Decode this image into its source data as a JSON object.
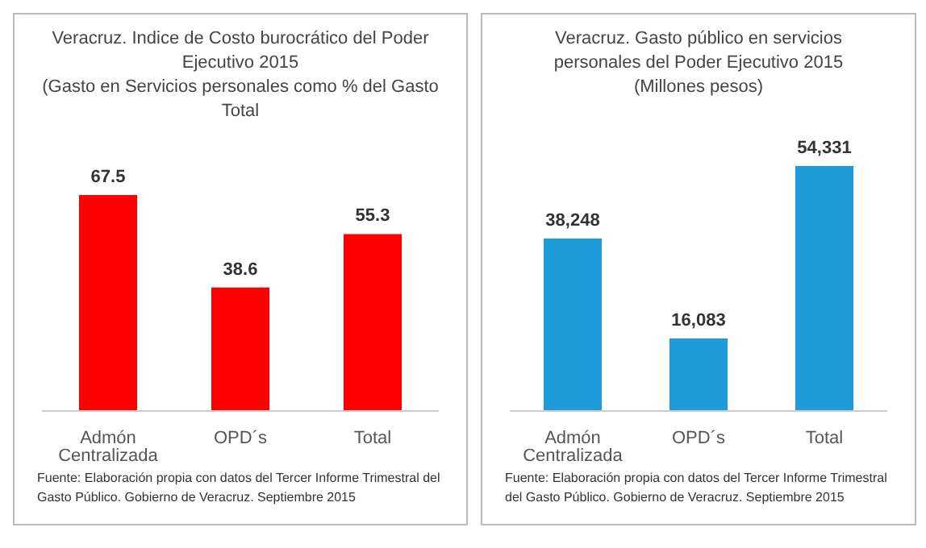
{
  "chart_data": [
    {
      "type": "bar",
      "title": "Veracruz. Indice de Costo burocrático del Poder Ejecutivo 2015",
      "subtitle": "(Gasto en Servicios personales como % del Gasto Total",
      "categories": [
        "Admón Centralizada",
        "OPD´s",
        "Total"
      ],
      "values": [
        67.5,
        38.6,
        55.3
      ],
      "color": "#ff0000",
      "data_labels": true,
      "grid": false,
      "legend": false,
      "annotations": [
        "Fuente: Elaboración propia con datos del Tercer Informe Trimestral del Gasto Público. Gobierno de Veracruz. Septiembre 2015"
      ]
    },
    {
      "type": "bar",
      "title": "Veracruz. Gasto público en servicios personales del Poder Ejecutivo 2015",
      "subtitle": "(Millones pesos)",
      "categories": [
        "Admón Centralizada",
        "OPD´s",
        "Total"
      ],
      "values": [
        38248,
        16083,
        54331
      ],
      "value_labels": [
        "38,248",
        "16,083",
        "54,331"
      ],
      "color": "#1e9bd8",
      "grid": false,
      "legend": false,
      "annotations": [
        "Fuente: Elaboración propia con datos del Tercer Informe Trimestral del Gasto Público. Gobierno de Veracruz. Septiembre 2015"
      ]
    }
  ]
}
